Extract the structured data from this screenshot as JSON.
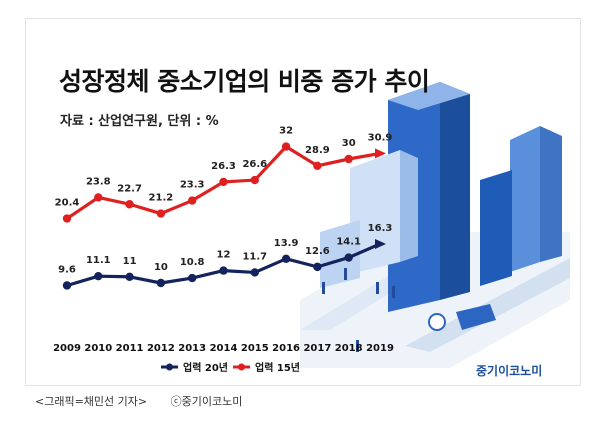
{
  "title": "성장정체 중소기업의 비중 증가 추이",
  "source": "자료 : 산업연구원, 단위 : %",
  "brand": "중기이코노미",
  "caption": [
    "<그래픽=채민선 기자>",
    "ⓒ중기이코노미"
  ],
  "colors": {
    "red": "#e02020",
    "navy": "#14235c",
    "frame": "#e2e2e2"
  },
  "chart_data": {
    "type": "line",
    "x": [
      "2009",
      "2010",
      "2011",
      "2012",
      "2013",
      "2014",
      "2015",
      "2016",
      "2017",
      "2018",
      "2019"
    ],
    "series": [
      {
        "name": "업력 15년",
        "color": "#e02020",
        "values": [
          20.4,
          23.8,
          22.7,
          21.2,
          23.3,
          26.3,
          26.6,
          32,
          28.9,
          30,
          30.9
        ]
      },
      {
        "name": "업력 20년",
        "color": "#14235c",
        "values": [
          9.6,
          11.1,
          11,
          10,
          10.8,
          12,
          11.7,
          13.9,
          12.6,
          14.1,
          16.3
        ]
      }
    ],
    "legend_position": "bottom",
    "grid": false
  }
}
